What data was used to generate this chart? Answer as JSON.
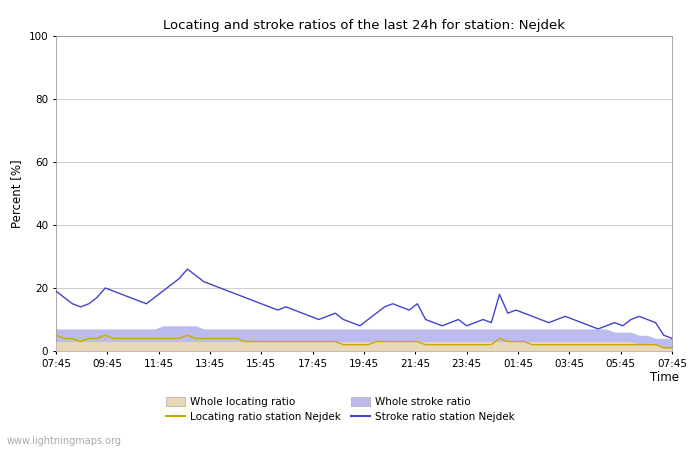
{
  "title": "Locating and stroke ratios of the last 24h for station: Nejdek",
  "ylabel": "Percent [%]",
  "xlabel": "Time",
  "watermark": "www.lightningmaps.org",
  "ylim": [
    0,
    100
  ],
  "yticks": [
    0,
    20,
    40,
    60,
    80,
    100
  ],
  "xtick_labels": [
    "07:45",
    "09:45",
    "11:45",
    "13:45",
    "15:45",
    "17:45",
    "19:45",
    "21:45",
    "23:45",
    "01:45",
    "03:45",
    "05:45",
    "07:45"
  ],
  "stroke_ratio_station": [
    19,
    17,
    15,
    14,
    15,
    17,
    20,
    19,
    18,
    17,
    16,
    15,
    17,
    19,
    21,
    23,
    26,
    24,
    22,
    21,
    20,
    19,
    18,
    17,
    16,
    15,
    14,
    13,
    14,
    13,
    12,
    11,
    10,
    11,
    12,
    10,
    9,
    8,
    10,
    12,
    14,
    15,
    14,
    13,
    15,
    10,
    9,
    8,
    9,
    10,
    8,
    9,
    10,
    9,
    18,
    12,
    13,
    12,
    11,
    10,
    9,
    10,
    11,
    10,
    9,
    8,
    7,
    8,
    9,
    8,
    10,
    11,
    10,
    9,
    5,
    4
  ],
  "locating_ratio_station": [
    5,
    4,
    4,
    3,
    4,
    4,
    5,
    4,
    4,
    4,
    4,
    4,
    4,
    4,
    4,
    4,
    5,
    4,
    4,
    4,
    4,
    4,
    4,
    3,
    3,
    3,
    3,
    3,
    3,
    3,
    3,
    3,
    3,
    3,
    3,
    2,
    2,
    2,
    2,
    3,
    3,
    3,
    3,
    3,
    3,
    2,
    2,
    2,
    2,
    2,
    2,
    2,
    2,
    2,
    4,
    3,
    3,
    3,
    2,
    2,
    2,
    2,
    2,
    2,
    2,
    2,
    2,
    2,
    2,
    2,
    2,
    2,
    2,
    2,
    1,
    1
  ],
  "whole_stroke_ratio": [
    7,
    7,
    7,
    7,
    7,
    7,
    7,
    7,
    7,
    7,
    7,
    7,
    7,
    8,
    8,
    8,
    8,
    8,
    7,
    7,
    7,
    7,
    7,
    7,
    7,
    7,
    7,
    7,
    7,
    7,
    7,
    7,
    7,
    7,
    7,
    7,
    7,
    7,
    7,
    7,
    7,
    7,
    7,
    7,
    7,
    7,
    7,
    7,
    7,
    7,
    7,
    7,
    7,
    7,
    7,
    7,
    7,
    7,
    7,
    7,
    7,
    7,
    7,
    7,
    7,
    7,
    7,
    7,
    6,
    6,
    6,
    5,
    5,
    4,
    4,
    4
  ],
  "whole_locating_ratio": [
    3,
    3,
    3,
    3,
    3,
    3,
    3,
    3,
    3,
    3,
    3,
    3,
    3,
    3,
    3,
    3,
    3,
    3,
    3,
    3,
    3,
    3,
    3,
    3,
    3,
    3,
    3,
    3,
    3,
    3,
    3,
    3,
    3,
    3,
    3,
    3,
    3,
    3,
    3,
    3,
    3,
    3,
    3,
    3,
    3,
    3,
    3,
    3,
    3,
    3,
    3,
    3,
    3,
    3,
    3,
    3,
    3,
    3,
    3,
    3,
    3,
    3,
    3,
    3,
    3,
    3,
    3,
    3,
    3,
    3,
    3,
    2,
    2,
    2,
    1,
    1
  ],
  "color_stroke_station": "#4444cc",
  "color_locating_station": "#ccaa00",
  "color_whole_stroke_fill": "#bbbbee",
  "color_whole_locating_fill": "#e8d8b8",
  "legend_labels": [
    "Whole locating ratio",
    "Locating ratio station Nejdek",
    "Whole stroke ratio",
    "Stroke ratio station Nejdek"
  ],
  "bg_color": "#ffffff"
}
